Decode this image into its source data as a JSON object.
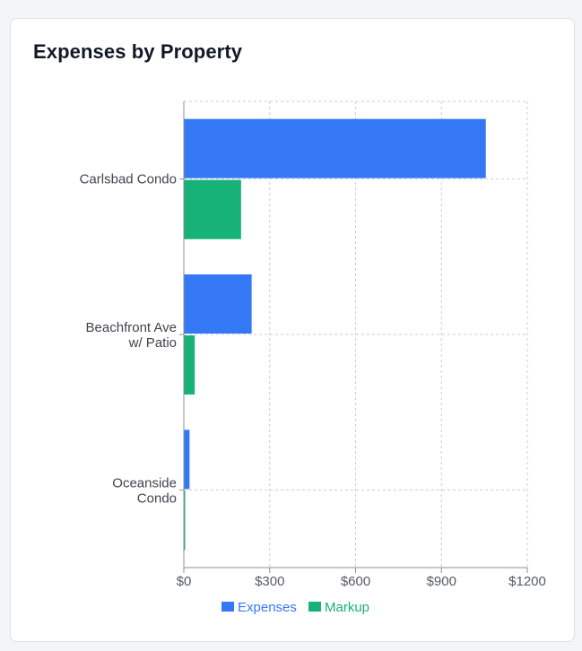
{
  "card": {
    "title": "Expenses by Property"
  },
  "chart_data": {
    "type": "bar",
    "orientation": "horizontal",
    "title": "Expenses by Property",
    "categories": [
      [
        "Carlsbad Condo"
      ],
      [
        "Beachfront Ave",
        "w/ Patio"
      ],
      [
        "Oceanside",
        "Condo"
      ]
    ],
    "series": [
      {
        "name": "Expenses",
        "color": "#3478f6",
        "values": [
          1055,
          237,
          20
        ]
      },
      {
        "name": "Markup",
        "color": "#16b277",
        "values": [
          200,
          38,
          3
        ]
      }
    ],
    "xlim": [
      0,
      1200
    ],
    "xticks": [
      0,
      300,
      600,
      900,
      1200
    ],
    "xtick_labels": [
      "$0",
      "$300",
      "$600",
      "$900",
      "$1200"
    ],
    "grid": true,
    "legend": "bottom"
  }
}
